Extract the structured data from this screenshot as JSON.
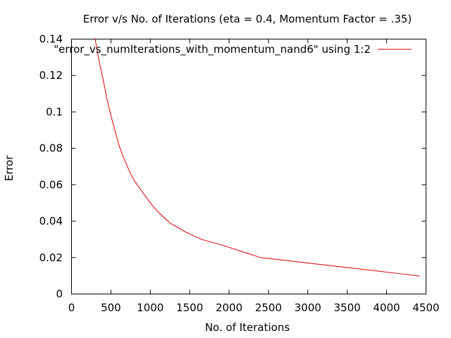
{
  "chart_data": {
    "type": "line",
    "title": "Error v/s No. of Iterations (eta = 0.4, Momentum Factor = .35)",
    "xlabel": "No. of Iterations",
    "ylabel": "Error",
    "xlim": [
      0,
      4500
    ],
    "ylim": [
      0,
      0.14
    ],
    "grid": false,
    "legend_position": "top-right",
    "x_ticks": [
      0,
      500,
      1000,
      1500,
      2000,
      2500,
      3000,
      3500,
      4000,
      4500
    ],
    "x_tick_labels": [
      "0",
      "500",
      "1000",
      "1500",
      "2000",
      "2500",
      "3000",
      "3500",
      "4000",
      "4500"
    ],
    "y_ticks": [
      0,
      0.02,
      0.04,
      0.06,
      0.08,
      0.1,
      0.12,
      0.14
    ],
    "y_tick_labels": [
      "0",
      "0.02",
      "0.04",
      "0.06",
      "0.08",
      "0.1",
      "0.12",
      "0.14"
    ],
    "series": [
      {
        "name": "\"error_vs_numIterations_with_momentum_nand6\" using 1:2",
        "color": "#dd0000",
        "x": [
          300,
          350,
          400,
          450,
          500,
          550,
          600,
          650,
          700,
          750,
          800,
          850,
          900,
          1000,
          1100,
          1250,
          1450,
          1650,
          1900,
          2150,
          2400,
          2700,
          3000,
          3300,
          3600,
          3900,
          4200,
          4420
        ],
        "y": [
          0.14,
          0.128,
          0.118,
          0.107,
          0.098,
          0.09,
          0.082,
          0.076,
          0.071,
          0.066,
          0.062,
          0.059,
          0.056,
          0.05,
          0.045,
          0.039,
          0.034,
          0.03,
          0.027,
          0.0235,
          0.02,
          0.0185,
          0.017,
          0.0155,
          0.014,
          0.0125,
          0.011,
          0.0098
        ]
      }
    ]
  }
}
